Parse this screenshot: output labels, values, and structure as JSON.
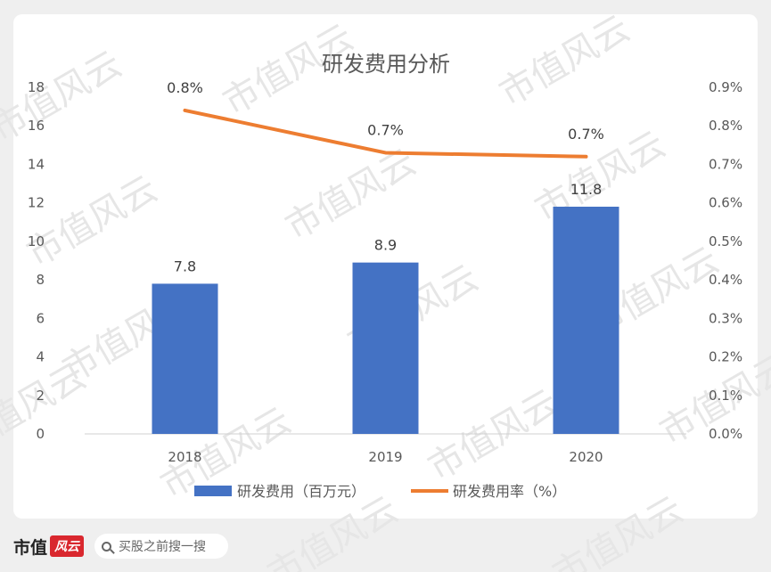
{
  "chart_data": {
    "type": "bar+line",
    "title": "研发费用分析",
    "categories": [
      "2018",
      "2019",
      "2020"
    ],
    "series": [
      {
        "name": "研发费用（百万元）",
        "type": "bar",
        "axis": "left",
        "values": [
          7.8,
          8.9,
          11.8
        ],
        "labels": [
          "7.8",
          "8.9",
          "11.8"
        ],
        "color": "#4472c4"
      },
      {
        "name": "研发费用率（%）",
        "type": "line",
        "axis": "right",
        "values": [
          0.0084,
          0.0073,
          0.0072
        ],
        "labels": [
          "0.8%",
          "0.7%",
          "0.7%"
        ],
        "color": "#ed7d31"
      }
    ],
    "y_left": {
      "min": 0,
      "max": 18,
      "step": 2,
      "ticks": [
        "0",
        "2",
        "4",
        "6",
        "8",
        "10",
        "12",
        "14",
        "16",
        "18"
      ]
    },
    "y_right": {
      "min": 0,
      "max": 0.009,
      "step": 0.001,
      "ticks": [
        "0.0%",
        "0.1%",
        "0.2%",
        "0.3%",
        "0.4%",
        "0.5%",
        "0.6%",
        "0.7%",
        "0.8%",
        "0.9%"
      ]
    },
    "grid": false,
    "legend": "bottom"
  },
  "watermark": "市值风云",
  "footer": {
    "brand_text": "市值",
    "brand_badge": "风云",
    "search_placeholder": "买股之前搜一搜"
  },
  "colors": {
    "bar": "#4472c4",
    "line": "#ed7d31",
    "brand": "#d9272e"
  }
}
